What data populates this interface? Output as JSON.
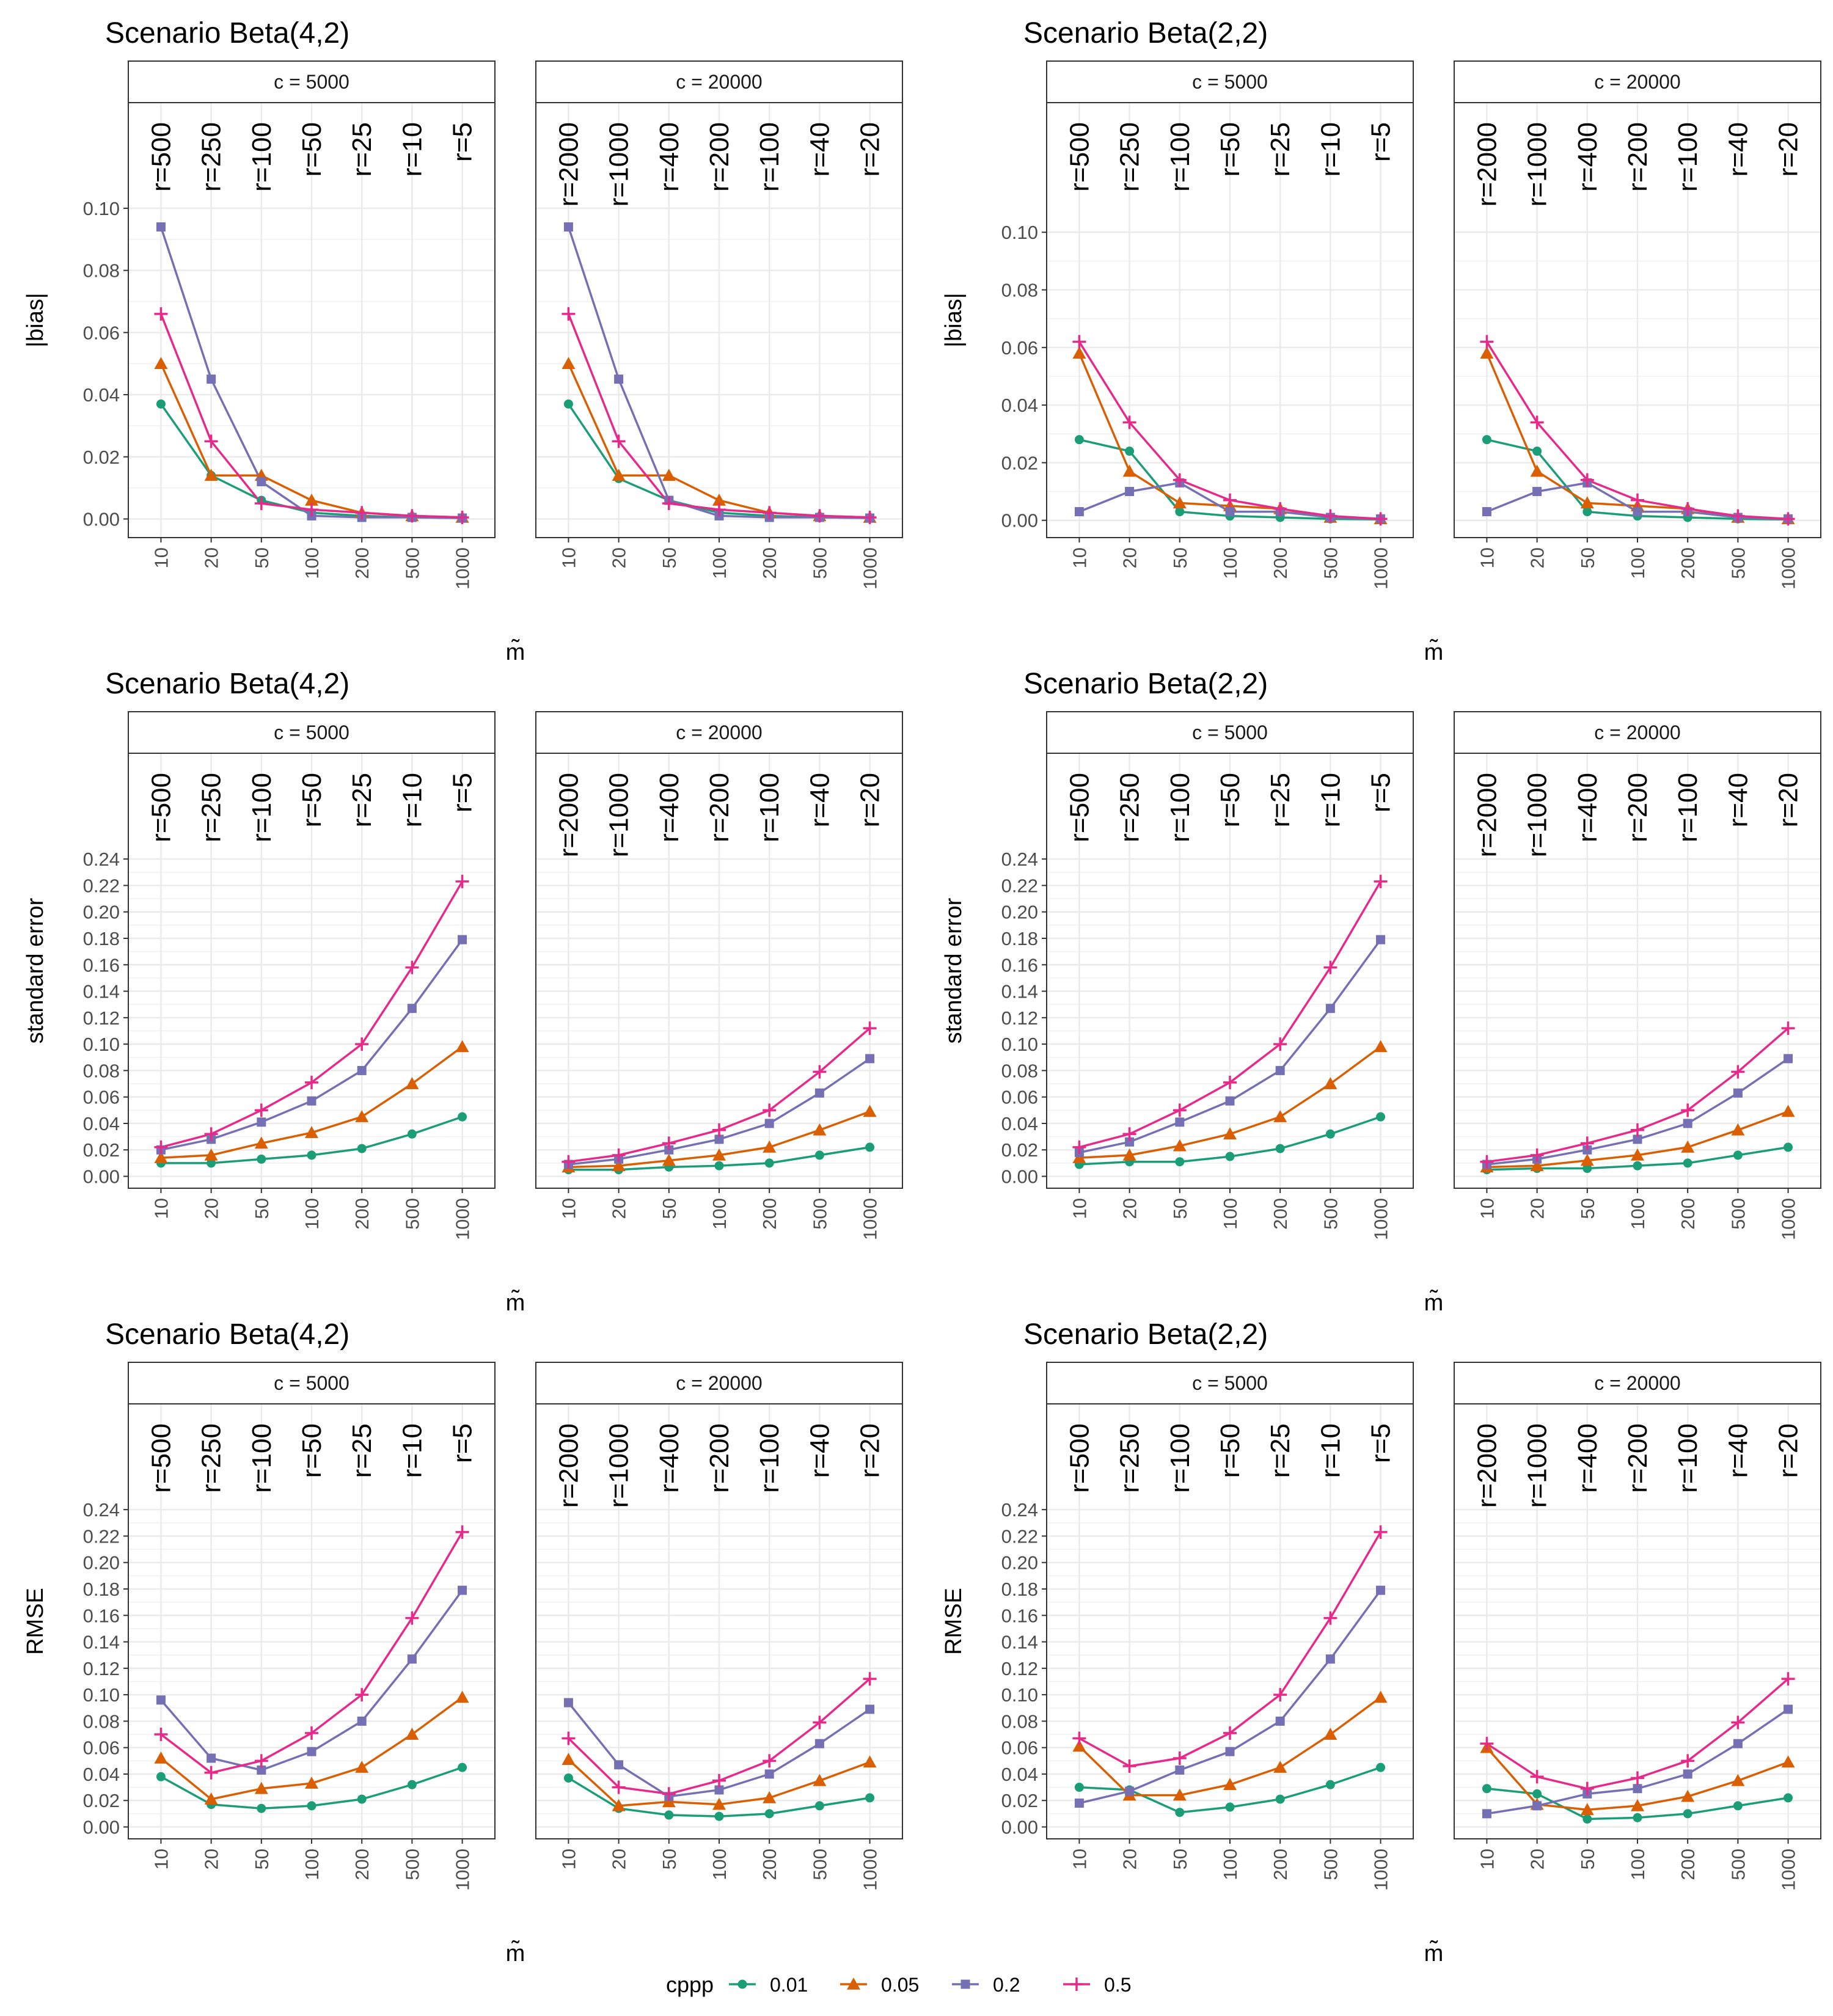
{
  "x_categories": [
    "10",
    "20",
    "50",
    "100",
    "200",
    "500",
    "1000"
  ],
  "x_axis_label": "m̃",
  "legend": {
    "title": "cppp",
    "items": [
      {
        "label": "0.01",
        "color": "#1B9E77",
        "shape": "circle"
      },
      {
        "label": "0.05",
        "color": "#D95F02",
        "shape": "triangle"
      },
      {
        "label": "0.2",
        "color": "#7570B3",
        "shape": "square"
      },
      {
        "label": "0.5",
        "color": "#E7298A",
        "shape": "plus"
      }
    ]
  },
  "facets": [
    {
      "strip": "c = 5000",
      "r_labels": [
        "r=500",
        "r=250",
        "r=100",
        "r=50",
        "r=25",
        "r=10",
        "r=5"
      ]
    },
    {
      "strip": "c = 20000",
      "r_labels": [
        "r=2000",
        "r=1000",
        "r=400",
        "r=200",
        "r=100",
        "r=40",
        "r=20"
      ]
    }
  ],
  "chart_data": [
    {
      "type": "line",
      "title": "Scenario Beta(4,2)",
      "ylabel": "|bias|",
      "ylim": [
        -0.006,
        0.134
      ],
      "yticks": [
        0.0,
        0.02,
        0.04,
        0.06,
        0.08,
        0.1
      ],
      "yticklabels": [
        "0.00",
        "0.02",
        "0.04",
        "0.06",
        "0.08",
        "0.10"
      ],
      "panels": [
        {
          "series": [
            {
              "name": "0.01",
              "values": [
                0.037,
                0.014,
                0.006,
                0.002,
                0.001,
                0.0005,
                0.0003
              ]
            },
            {
              "name": "0.05",
              "values": [
                0.05,
                0.014,
                0.014,
                0.006,
                0.002,
                0.001,
                0.0005
              ]
            },
            {
              "name": "0.2",
              "values": [
                0.094,
                0.045,
                0.012,
                0.001,
                0.0005,
                0.0005,
                0.0003
              ]
            },
            {
              "name": "0.5",
              "values": [
                0.066,
                0.025,
                0.005,
                0.003,
                0.002,
                0.001,
                0.0005
              ]
            }
          ]
        },
        {
          "series": [
            {
              "name": "0.01",
              "values": [
                0.037,
                0.013,
                0.006,
                0.002,
                0.001,
                0.0005,
                0.0003
              ]
            },
            {
              "name": "0.05",
              "values": [
                0.05,
                0.014,
                0.014,
                0.006,
                0.002,
                0.001,
                0.0005
              ]
            },
            {
              "name": "0.2",
              "values": [
                0.094,
                0.045,
                0.006,
                0.001,
                0.0005,
                0.0005,
                0.0003
              ]
            },
            {
              "name": "0.5",
              "values": [
                0.066,
                0.025,
                0.005,
                0.003,
                0.002,
                0.001,
                0.0005
              ]
            }
          ]
        }
      ]
    },
    {
      "type": "line",
      "title": "Scenario Beta(2,2)",
      "ylabel": "|bias|",
      "ylim": [
        -0.006,
        0.145
      ],
      "yticks": [
        0.0,
        0.02,
        0.04,
        0.06,
        0.08,
        0.1
      ],
      "yticklabels": [
        "0.00",
        "0.02",
        "0.04",
        "0.06",
        "0.08",
        "0.10"
      ],
      "panels": [
        {
          "series": [
            {
              "name": "0.01",
              "values": [
                0.028,
                0.024,
                0.003,
                0.0015,
                0.001,
                0.0005,
                0.0003
              ]
            },
            {
              "name": "0.05",
              "values": [
                0.058,
                0.017,
                0.006,
                0.005,
                0.004,
                0.001,
                0.0005
              ]
            },
            {
              "name": "0.2",
              "values": [
                0.003,
                0.01,
                0.013,
                0.003,
                0.003,
                0.001,
                0.0005
              ]
            },
            {
              "name": "0.5",
              "values": [
                0.062,
                0.034,
                0.014,
                0.007,
                0.004,
                0.0015,
                0.0005
              ]
            }
          ]
        },
        {
          "series": [
            {
              "name": "0.01",
              "values": [
                0.028,
                0.024,
                0.003,
                0.0015,
                0.001,
                0.0005,
                0.0003
              ]
            },
            {
              "name": "0.05",
              "values": [
                0.058,
                0.017,
                0.006,
                0.005,
                0.004,
                0.001,
                0.0005
              ]
            },
            {
              "name": "0.2",
              "values": [
                0.003,
                0.01,
                0.013,
                0.003,
                0.003,
                0.001,
                0.0005
              ]
            },
            {
              "name": "0.5",
              "values": [
                0.062,
                0.034,
                0.014,
                0.007,
                0.004,
                0.0015,
                0.0005
              ]
            }
          ]
        }
      ]
    },
    {
      "type": "line",
      "title": "Scenario Beta(4,2)",
      "ylabel": "standard error",
      "ylim": [
        -0.009,
        0.32
      ],
      "yticks": [
        0.0,
        0.02,
        0.04,
        0.06,
        0.08,
        0.1,
        0.12,
        0.14,
        0.16,
        0.18,
        0.2,
        0.22,
        0.24
      ],
      "yticklabels": [
        "0.00",
        "0.02",
        "0.04",
        "0.06",
        "0.08",
        "0.10",
        "0.12",
        "0.14",
        "0.16",
        "0.18",
        "0.20",
        "0.22",
        "0.24"
      ],
      "panels": [
        {
          "series": [
            {
              "name": "0.01",
              "values": [
                0.01,
                0.01,
                0.013,
                0.016,
                0.021,
                0.032,
                0.045
              ]
            },
            {
              "name": "0.05",
              "values": [
                0.014,
                0.016,
                0.025,
                0.033,
                0.045,
                0.07,
                0.098
              ]
            },
            {
              "name": "0.2",
              "values": [
                0.02,
                0.028,
                0.041,
                0.057,
                0.08,
                0.127,
                0.179
              ]
            },
            {
              "name": "0.5",
              "values": [
                0.022,
                0.032,
                0.05,
                0.071,
                0.1,
                0.158,
                0.223
              ]
            }
          ]
        },
        {
          "series": [
            {
              "name": "0.01",
              "values": [
                0.005,
                0.005,
                0.007,
                0.008,
                0.01,
                0.016,
                0.022
              ]
            },
            {
              "name": "0.05",
              "values": [
                0.007,
                0.008,
                0.012,
                0.016,
                0.022,
                0.035,
                0.049
              ]
            },
            {
              "name": "0.2",
              "values": [
                0.009,
                0.013,
                0.02,
                0.028,
                0.04,
                0.063,
                0.089
              ]
            },
            {
              "name": "0.5",
              "values": [
                0.011,
                0.016,
                0.025,
                0.035,
                0.05,
                0.079,
                0.112
              ]
            }
          ]
        }
      ]
    },
    {
      "type": "line",
      "title": "Scenario Beta(2,2)",
      "ylabel": "standard error",
      "ylim": [
        -0.009,
        0.32
      ],
      "yticks": [
        0.0,
        0.02,
        0.04,
        0.06,
        0.08,
        0.1,
        0.12,
        0.14,
        0.16,
        0.18,
        0.2,
        0.22,
        0.24
      ],
      "yticklabels": [
        "0.00",
        "0.02",
        "0.04",
        "0.06",
        "0.08",
        "0.10",
        "0.12",
        "0.14",
        "0.16",
        "0.18",
        "0.20",
        "0.22",
        "0.24"
      ],
      "panels": [
        {
          "series": [
            {
              "name": "0.01",
              "values": [
                0.009,
                0.011,
                0.011,
                0.015,
                0.021,
                0.032,
                0.045
              ]
            },
            {
              "name": "0.05",
              "values": [
                0.014,
                0.016,
                0.023,
                0.032,
                0.045,
                0.07,
                0.098
              ]
            },
            {
              "name": "0.2",
              "values": [
                0.018,
                0.026,
                0.041,
                0.057,
                0.08,
                0.127,
                0.179
              ]
            },
            {
              "name": "0.5",
              "values": [
                0.022,
                0.032,
                0.05,
                0.071,
                0.1,
                0.158,
                0.223
              ]
            }
          ]
        },
        {
          "series": [
            {
              "name": "0.01",
              "values": [
                0.005,
                0.006,
                0.006,
                0.008,
                0.01,
                0.016,
                0.022
              ]
            },
            {
              "name": "0.05",
              "values": [
                0.007,
                0.008,
                0.012,
                0.016,
                0.022,
                0.035,
                0.049
              ]
            },
            {
              "name": "0.2",
              "values": [
                0.009,
                0.013,
                0.02,
                0.028,
                0.04,
                0.063,
                0.089
              ]
            },
            {
              "name": "0.5",
              "values": [
                0.011,
                0.016,
                0.025,
                0.035,
                0.05,
                0.079,
                0.112
              ]
            }
          ]
        }
      ]
    },
    {
      "type": "line",
      "title": "Scenario Beta(4,2)",
      "ylabel": "RMSE",
      "ylim": [
        -0.009,
        0.32
      ],
      "yticks": [
        0.0,
        0.02,
        0.04,
        0.06,
        0.08,
        0.1,
        0.12,
        0.14,
        0.16,
        0.18,
        0.2,
        0.22,
        0.24
      ],
      "yticklabels": [
        "0.00",
        "0.02",
        "0.04",
        "0.06",
        "0.08",
        "0.10",
        "0.12",
        "0.14",
        "0.16",
        "0.18",
        "0.20",
        "0.22",
        "0.24"
      ],
      "panels": [
        {
          "series": [
            {
              "name": "0.01",
              "values": [
                0.038,
                0.017,
                0.014,
                0.016,
                0.021,
                0.032,
                0.045
              ]
            },
            {
              "name": "0.05",
              "values": [
                0.052,
                0.021,
                0.029,
                0.033,
                0.045,
                0.07,
                0.098
              ]
            },
            {
              "name": "0.2",
              "values": [
                0.096,
                0.052,
                0.043,
                0.057,
                0.08,
                0.127,
                0.179
              ]
            },
            {
              "name": "0.5",
              "values": [
                0.07,
                0.041,
                0.05,
                0.071,
                0.1,
                0.158,
                0.223
              ]
            }
          ]
        },
        {
          "series": [
            {
              "name": "0.01",
              "values": [
                0.037,
                0.014,
                0.009,
                0.008,
                0.01,
                0.016,
                0.022
              ]
            },
            {
              "name": "0.05",
              "values": [
                0.051,
                0.016,
                0.019,
                0.017,
                0.022,
                0.035,
                0.049
              ]
            },
            {
              "name": "0.2",
              "values": [
                0.094,
                0.047,
                0.023,
                0.028,
                0.04,
                0.063,
                0.089
              ]
            },
            {
              "name": "0.5",
              "values": [
                0.067,
                0.03,
                0.025,
                0.035,
                0.05,
                0.079,
                0.112
              ]
            }
          ]
        }
      ]
    },
    {
      "type": "line",
      "title": "Scenario Beta(2,2)",
      "ylabel": "RMSE",
      "ylim": [
        -0.009,
        0.32
      ],
      "yticks": [
        0.0,
        0.02,
        0.04,
        0.06,
        0.08,
        0.1,
        0.12,
        0.14,
        0.16,
        0.18,
        0.2,
        0.22,
        0.24
      ],
      "yticklabels": [
        "0.00",
        "0.02",
        "0.04",
        "0.06",
        "0.08",
        "0.10",
        "0.12",
        "0.14",
        "0.16",
        "0.18",
        "0.20",
        "0.22",
        "0.24"
      ],
      "panels": [
        {
          "series": [
            {
              "name": "0.01",
              "values": [
                0.03,
                0.028,
                0.011,
                0.015,
                0.021,
                0.032,
                0.045
              ]
            },
            {
              "name": "0.05",
              "values": [
                0.061,
                0.024,
                0.024,
                0.032,
                0.045,
                0.07,
                0.098
              ]
            },
            {
              "name": "0.2",
              "values": [
                0.018,
                0.027,
                0.043,
                0.057,
                0.08,
                0.127,
                0.179
              ]
            },
            {
              "name": "0.5",
              "values": [
                0.067,
                0.046,
                0.052,
                0.071,
                0.1,
                0.158,
                0.223
              ]
            }
          ]
        },
        {
          "series": [
            {
              "name": "0.01",
              "values": [
                0.029,
                0.025,
                0.006,
                0.007,
                0.01,
                0.016,
                0.022
              ]
            },
            {
              "name": "0.05",
              "values": [
                0.06,
                0.017,
                0.013,
                0.016,
                0.023,
                0.035,
                0.049
              ]
            },
            {
              "name": "0.2",
              "values": [
                0.01,
                0.016,
                0.025,
                0.029,
                0.04,
                0.063,
                0.089
              ]
            },
            {
              "name": "0.5",
              "values": [
                0.063,
                0.038,
                0.029,
                0.037,
                0.05,
                0.079,
                0.112
              ]
            }
          ]
        }
      ]
    }
  ]
}
